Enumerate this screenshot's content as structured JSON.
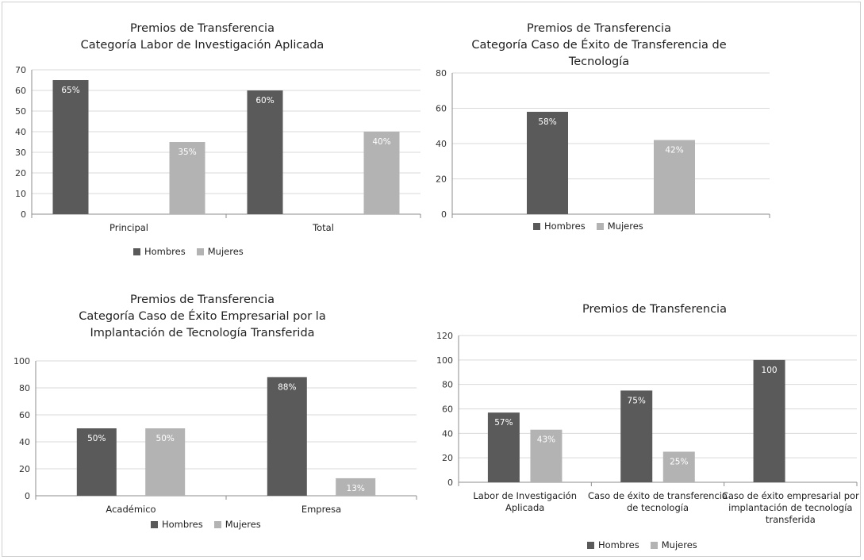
{
  "colors": {
    "hombres": "#5a5a5a",
    "mujeres": "#b3b3b3",
    "grid": "#d9d9d9",
    "axis": "#8c8c8c"
  },
  "chart_data": [
    {
      "type": "bar",
      "title_lines": [
        "Premios de Transferencia",
        "Categoría Labor de Investigación Aplicada"
      ],
      "categories": [
        "Principal",
        "Total"
      ],
      "category_lines": [
        [
          "Principal"
        ],
        [
          "Total"
        ]
      ],
      "series": [
        {
          "name": "Hombres",
          "values": [
            65,
            60
          ],
          "labels": [
            "65%",
            "60%"
          ]
        },
        {
          "name": "Mujeres",
          "values": [
            35,
            40
          ],
          "labels": [
            "35%",
            "40%"
          ]
        }
      ],
      "ylim": [
        0,
        70
      ],
      "yticks": [
        0,
        10,
        20,
        30,
        40,
        50,
        60,
        70
      ],
      "grid": true,
      "legend": "bottom-center",
      "xlabel": "",
      "ylabel": ""
    },
    {
      "type": "bar",
      "title_lines": [
        "Premios de Transferencia",
        "Categoría Caso de Éxito de Transferencia de",
        "Tecnología"
      ],
      "categories": [
        ""
      ],
      "category_lines": [
        []
      ],
      "series": [
        {
          "name": "Hombres",
          "values": [
            58
          ],
          "labels": [
            "58%"
          ]
        },
        {
          "name": "Mujeres",
          "values": [
            42
          ],
          "labels": [
            "42%"
          ]
        }
      ],
      "ylim": [
        0,
        80
      ],
      "yticks": [
        0,
        20,
        40,
        60,
        80
      ],
      "grid": true,
      "legend": "bottom-center",
      "xlabel": "",
      "ylabel": ""
    },
    {
      "type": "bar",
      "title_lines": [
        "Premios de Transferencia",
        "Categoría Caso de Éxito Empresarial por la",
        "Implantación de Tecnología Transferida"
      ],
      "categories": [
        "Académico",
        "Empresa"
      ],
      "category_lines": [
        [
          "Académico"
        ],
        [
          "Empresa"
        ]
      ],
      "series": [
        {
          "name": "Hombres",
          "values": [
            50,
            88
          ],
          "labels": [
            "50%",
            "88%"
          ]
        },
        {
          "name": "Mujeres",
          "values": [
            50,
            13
          ],
          "labels": [
            "50%",
            "13%"
          ]
        }
      ],
      "ylim": [
        0,
        100
      ],
      "yticks": [
        0,
        20,
        40,
        60,
        80,
        100
      ],
      "grid": true,
      "legend": "bottom-center",
      "xlabel": "",
      "ylabel": ""
    },
    {
      "type": "bar",
      "title_lines": [
        "Premios de Transferencia"
      ],
      "categories": [
        "Labor de Investigación Aplicada",
        "Caso de éxito de transferencia de tecnología",
        "Caso de éxito empresarial por implantación de tecnología transferida"
      ],
      "category_lines": [
        [
          "Labor de Investigación",
          "Aplicada"
        ],
        [
          "Caso de éxito de transferencia",
          "de tecnología"
        ],
        [
          "Caso de éxito empresarial por",
          "implantación de tecnología",
          "transferida"
        ]
      ],
      "series": [
        {
          "name": "Hombres",
          "values": [
            57,
            75,
            100
          ],
          "labels": [
            "57%",
            "75%",
            "100"
          ]
        },
        {
          "name": "Mujeres",
          "values": [
            43,
            25,
            null
          ],
          "labels": [
            "43%",
            "25%",
            ""
          ]
        }
      ],
      "ylim": [
        0,
        120
      ],
      "yticks": [
        0,
        20,
        40,
        60,
        80,
        100,
        120
      ],
      "grid": true,
      "legend": "bottom-center",
      "xlabel": "",
      "ylabel": ""
    }
  ]
}
